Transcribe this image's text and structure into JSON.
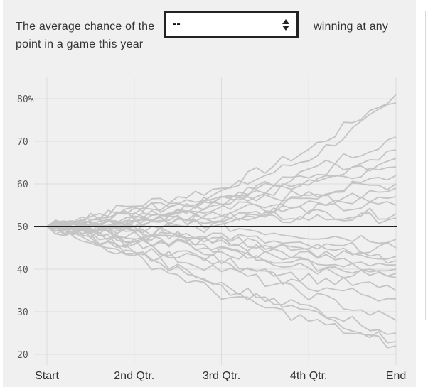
{
  "header": {
    "intro_line1": "The average chance of the",
    "intro_line2": "point in a game this year",
    "suffix": "winning at any",
    "team_select": {
      "selected": "--"
    }
  },
  "colors": {
    "panel_background": "#f0f0f0",
    "path_lines": "#c4c4c4",
    "baseline": "#222222",
    "gridlines": "#dcdcdc"
  },
  "chart_data": {
    "type": "line",
    "title": "",
    "xlabel": "",
    "ylabel": "",
    "x_tick_labels": [
      "Start",
      "2nd Qtr.",
      "3rd Qtr.",
      "4th Qtr.",
      "End"
    ],
    "y_tick_labels": [
      "80%",
      "70",
      "60",
      "50",
      "40",
      "30",
      "20"
    ],
    "y_ticks": [
      80,
      70,
      60,
      50,
      40,
      30,
      20
    ],
    "ylim": [
      20,
      80
    ],
    "grid": true,
    "reference_line": 50,
    "x": [
      0,
      0.25,
      0.5,
      0.75,
      1
    ],
    "series": [
      {
        "values": [
          50,
          55,
          59,
          68,
          81
        ]
      },
      {
        "values": [
          50,
          54,
          58,
          66,
          79
        ]
      },
      {
        "values": [
          50,
          54,
          56,
          63,
          71
        ]
      },
      {
        "values": [
          50,
          52,
          57,
          62,
          68
        ]
      },
      {
        "values": [
          50,
          53,
          56,
          60,
          66
        ]
      },
      {
        "values": [
          50,
          52,
          55,
          61,
          64
        ]
      },
      {
        "values": [
          50,
          53,
          54,
          57,
          62
        ]
      },
      {
        "values": [
          50,
          51,
          55,
          58,
          60
        ]
      },
      {
        "values": [
          50,
          52,
          53,
          56,
          59
        ]
      },
      {
        "values": [
          50,
          51,
          52,
          55,
          57
        ]
      },
      {
        "values": [
          50,
          51,
          53,
          54,
          55
        ]
      },
      {
        "values": [
          50,
          50,
          52,
          53,
          53
        ]
      },
      {
        "values": [
          50,
          51,
          51,
          52,
          52
        ]
      },
      {
        "values": [
          50,
          49,
          50,
          48,
          47
        ]
      },
      {
        "values": [
          50,
          49,
          48,
          45,
          45
        ]
      },
      {
        "values": [
          50,
          48,
          47,
          45,
          43
        ]
      },
      {
        "values": [
          50,
          49,
          47,
          44,
          42
        ]
      },
      {
        "values": [
          50,
          48,
          46,
          43,
          41
        ]
      },
      {
        "values": [
          50,
          47,
          45,
          42,
          40
        ]
      },
      {
        "values": [
          50,
          48,
          44,
          41,
          39
        ]
      },
      {
        "values": [
          50,
          47,
          44,
          40,
          38
        ]
      },
      {
        "values": [
          50,
          46,
          42,
          38,
          35
        ]
      },
      {
        "values": [
          50,
          46,
          41,
          36,
          33
        ]
      },
      {
        "values": [
          50,
          45,
          40,
          34,
          28
        ]
      },
      {
        "values": [
          50,
          44,
          36,
          31,
          25
        ]
      },
      {
        "values": [
          50,
          44,
          35,
          30,
          23
        ]
      },
      {
        "values": [
          50,
          43,
          34,
          28,
          22
        ]
      }
    ]
  }
}
